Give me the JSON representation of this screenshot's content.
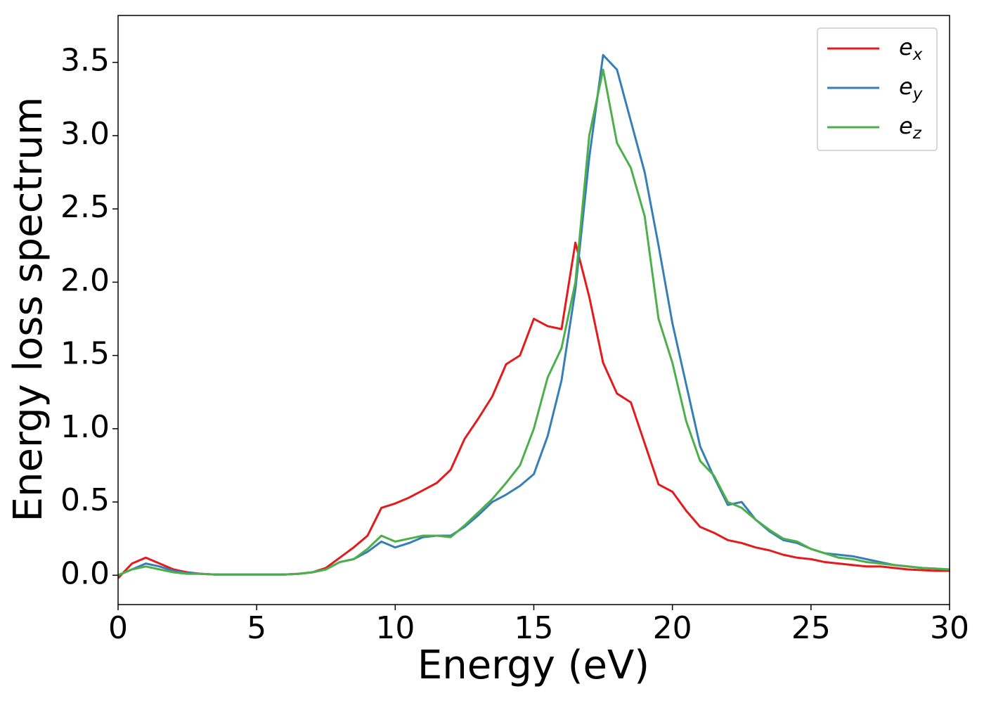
{
  "chart_data": {
    "type": "line",
    "xlabel": "Energy (eV)",
    "ylabel": "Energy loss spectrum",
    "x": [
      0,
      0.5,
      1,
      1.5,
      2,
      2.5,
      3,
      3.5,
      4,
      4.5,
      5,
      5.5,
      6,
      6.5,
      7,
      7.5,
      8,
      8.5,
      9,
      9.5,
      10,
      10.5,
      11,
      11.5,
      12,
      12.5,
      13,
      13.5,
      14,
      14.5,
      15,
      15.5,
      16,
      16.5,
      17,
      17.5,
      18,
      18.5,
      19,
      19.5,
      20,
      20.5,
      21,
      21.5,
      22,
      22.5,
      23,
      23.5,
      24,
      24.5,
      25,
      25.5,
      26,
      26.5,
      27,
      27.5,
      28,
      28.5,
      29,
      29.5,
      30
    ],
    "series": [
      {
        "name": "ex",
        "color": "#e41a1c",
        "values": [
          -0.02,
          0.08,
          0.12,
          0.08,
          0.04,
          0.02,
          0.01,
          0.005,
          0.005,
          0.005,
          0.005,
          0.005,
          0.005,
          0.01,
          0.02,
          0.05,
          0.12,
          0.19,
          0.27,
          0.46,
          0.49,
          0.53,
          0.58,
          0.63,
          0.72,
          0.93,
          1.07,
          1.22,
          1.44,
          1.5,
          1.75,
          1.7,
          1.68,
          2.27,
          1.9,
          1.45,
          1.24,
          1.18,
          0.9,
          0.62,
          0.57,
          0.44,
          0.33,
          0.29,
          0.24,
          0.22,
          0.19,
          0.17,
          0.14,
          0.12,
          0.11,
          0.09,
          0.08,
          0.07,
          0.06,
          0.06,
          0.05,
          0.04,
          0.035,
          0.03,
          0.03
        ]
      },
      {
        "name": "ey",
        "color": "#377eb8",
        "values": [
          0,
          0.04,
          0.08,
          0.06,
          0.03,
          0.015,
          0.01,
          0.005,
          0.005,
          0.005,
          0.005,
          0.005,
          0.005,
          0.01,
          0.02,
          0.04,
          0.09,
          0.11,
          0.16,
          0.23,
          0.19,
          0.22,
          0.26,
          0.27,
          0.27,
          0.33,
          0.41,
          0.5,
          0.55,
          0.61,
          0.69,
          0.95,
          1.33,
          1.95,
          2.85,
          3.55,
          3.45,
          3.1,
          2.75,
          2.25,
          1.72,
          1.3,
          0.88,
          0.67,
          0.48,
          0.5,
          0.38,
          0.3,
          0.24,
          0.22,
          0.18,
          0.15,
          0.14,
          0.13,
          0.11,
          0.09,
          0.07,
          0.06,
          0.05,
          0.045,
          0.04
        ]
      },
      {
        "name": "ez",
        "color": "#4daf4a",
        "values": [
          0,
          0.04,
          0.06,
          0.04,
          0.02,
          0.01,
          0.01,
          0.005,
          0.005,
          0.005,
          0.005,
          0.005,
          0.005,
          0.01,
          0.02,
          0.04,
          0.09,
          0.11,
          0.18,
          0.27,
          0.23,
          0.25,
          0.27,
          0.27,
          0.26,
          0.34,
          0.43,
          0.52,
          0.63,
          0.75,
          1.0,
          1.35,
          1.55,
          2.0,
          3.0,
          3.45,
          2.95,
          2.78,
          2.45,
          1.75,
          1.45,
          1.05,
          0.78,
          0.68,
          0.5,
          0.46,
          0.38,
          0.31,
          0.25,
          0.23,
          0.18,
          0.15,
          0.12,
          0.11,
          0.09,
          0.08,
          0.07,
          0.06,
          0.05,
          0.045,
          0.04
        ]
      }
    ],
    "xlim": [
      0,
      30
    ],
    "ylim": [
      -0.2,
      3.82
    ],
    "xticks": [
      0,
      5,
      10,
      15,
      20,
      25,
      30
    ],
    "yticks": [
      {
        "value": 0,
        "label": "0.0"
      },
      {
        "value": 0.5,
        "label": "0.5"
      },
      {
        "value": 1,
        "label": "1.0"
      },
      {
        "value": 1.5,
        "label": "1.5"
      },
      {
        "value": 2,
        "label": "2.0"
      },
      {
        "value": 2.5,
        "label": "2.5"
      },
      {
        "value": 3,
        "label": "3.0"
      },
      {
        "value": 3.5,
        "label": "3.5"
      }
    ],
    "legend": "upper right",
    "grid": false
  }
}
